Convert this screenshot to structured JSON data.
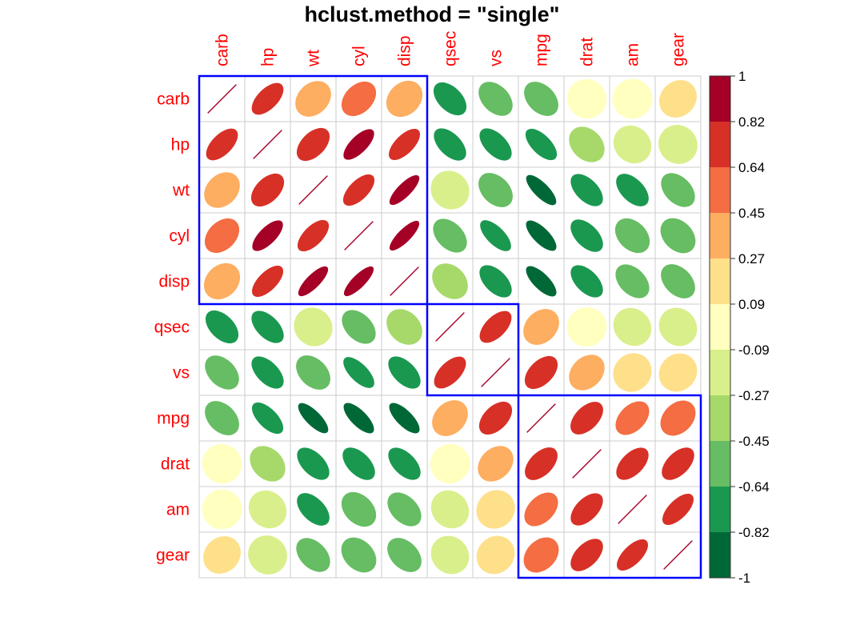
{
  "chart_data": {
    "type": "heatmap",
    "title": "hclust.method = \"single\"",
    "label_color": "#ff0000",
    "rect_color": "#0000ff",
    "variables": [
      "carb",
      "hp",
      "wt",
      "cyl",
      "disp",
      "qsec",
      "vs",
      "mpg",
      "drat",
      "am",
      "gear"
    ],
    "matrix": [
      [
        1.0,
        0.75,
        0.43,
        0.53,
        0.39,
        -0.66,
        -0.57,
        -0.55,
        -0.09,
        0.06,
        0.27
      ],
      [
        0.75,
        1.0,
        0.66,
        0.83,
        0.79,
        -0.71,
        -0.72,
        -0.78,
        -0.45,
        -0.24,
        -0.13
      ],
      [
        0.43,
        0.66,
        1.0,
        0.78,
        0.89,
        -0.17,
        -0.55,
        -0.87,
        -0.71,
        -0.69,
        -0.58
      ],
      [
        0.53,
        0.83,
        0.78,
        1.0,
        0.9,
        -0.59,
        -0.81,
        -0.85,
        -0.7,
        -0.52,
        -0.49
      ],
      [
        0.39,
        0.79,
        0.89,
        0.9,
        1.0,
        -0.43,
        -0.71,
        -0.85,
        -0.71,
        -0.59,
        -0.56
      ],
      [
        -0.66,
        -0.71,
        -0.17,
        -0.59,
        -0.43,
        1.0,
        0.74,
        0.42,
        0.09,
        -0.23,
        -0.21
      ],
      [
        -0.57,
        -0.72,
        -0.55,
        -0.81,
        -0.71,
        0.74,
        1.0,
        0.66,
        0.44,
        0.17,
        0.21
      ],
      [
        -0.55,
        -0.78,
        -0.87,
        -0.85,
        -0.85,
        0.42,
        0.66,
        1.0,
        0.68,
        0.6,
        0.48
      ],
      [
        -0.09,
        -0.45,
        -0.71,
        -0.7,
        -0.71,
        0.09,
        0.44,
        0.68,
        1.0,
        0.71,
        0.7
      ],
      [
        0.06,
        -0.24,
        -0.69,
        -0.52,
        -0.59,
        -0.23,
        0.17,
        0.6,
        0.71,
        1.0,
        0.79
      ],
      [
        0.27,
        -0.13,
        -0.58,
        -0.49,
        -0.56,
        -0.21,
        0.21,
        0.48,
        0.7,
        0.79,
        1.0
      ]
    ],
    "clusters": [
      {
        "start": "carb",
        "end": "disp"
      },
      {
        "start": "qsec",
        "end": "vs"
      },
      {
        "start": "mpg",
        "end": "gear"
      }
    ],
    "colorbar": {
      "ticks": [
        "1",
        "0.82",
        "0.64",
        "0.45",
        "0.27",
        "0.09",
        "-0.09",
        "-0.27",
        "-0.45",
        "-0.64",
        "-0.82",
        "-1"
      ],
      "colors_top_to_bottom": [
        "#a50026",
        "#d73027",
        "#f46d43",
        "#fdae61",
        "#fee08b",
        "#ffffbf",
        "#d9ef8b",
        "#a6d96a",
        "#66bd63",
        "#1a9850",
        "#006837"
      ]
    }
  }
}
